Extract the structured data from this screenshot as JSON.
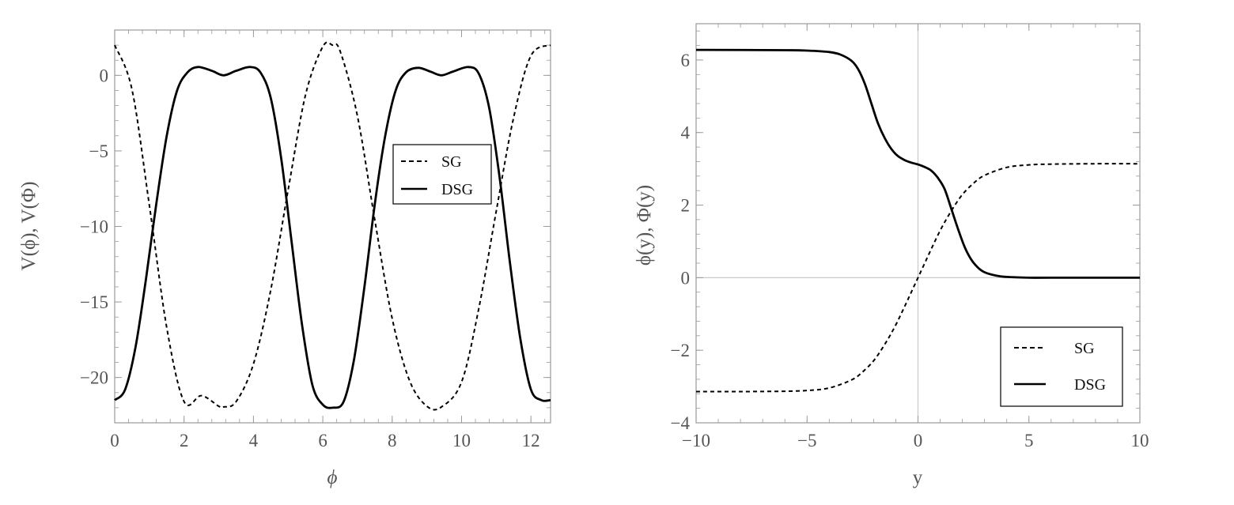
{
  "chart_data": [
    {
      "type": "line",
      "xlabel": "ϕ",
      "ylabel": "V(ϕ), V(Φ)",
      "xlim": [
        0,
        12.566
      ],
      "ylim": [
        -23,
        3
      ],
      "xticks": [
        0,
        2,
        4,
        6,
        8,
        10,
        12
      ],
      "xtick_labels": [
        "0",
        "2",
        "4",
        "6",
        "8",
        "10",
        "12"
      ],
      "yticks": [
        0,
        -5,
        -10,
        -15,
        -20
      ],
      "ytick_labels": [
        "0",
        "−5",
        "−10",
        "−15",
        "−20"
      ],
      "grid": false,
      "legend_position": "center-right",
      "series": [
        {
          "name": "SG",
          "style": "dashed",
          "color": "#000000",
          "x": [
            0,
            0.5,
            1.0,
            1.5,
            2.0,
            2.5,
            3.0,
            3.14,
            3.5,
            4.0,
            4.5,
            5.0,
            5.5,
            6.0,
            6.28,
            6.5,
            7.0,
            7.5,
            8.0,
            8.5,
            9.0,
            9.42,
            10.0,
            10.5,
            11.0,
            11.5,
            12.0,
            12.566
          ],
          "y": [
            2.0,
            -0.95,
            -8.6,
            -16.7,
            -21.6,
            -21.2,
            -21.9,
            -21.95,
            -21.6,
            -19.1,
            -14.2,
            -7.6,
            -1.3,
            1.9,
            2.0,
            1.6,
            -2.7,
            -9.6,
            -16.1,
            -20.2,
            -21.9,
            -21.95,
            -20.3,
            -15.4,
            -9.0,
            -2.8,
            1.3,
            2.0
          ]
        },
        {
          "name": "DSG",
          "style": "solid",
          "color": "#000000",
          "x": [
            0,
            0.3,
            0.6,
            0.9,
            1.2,
            1.5,
            1.8,
            2.1,
            2.4,
            2.8,
            3.14,
            3.5,
            3.9,
            4.2,
            4.5,
            4.8,
            5.1,
            5.4,
            5.7,
            6.0,
            6.28,
            6.6,
            6.9,
            7.2,
            7.5,
            7.8,
            8.1,
            8.4,
            8.75,
            9.1,
            9.42,
            9.75,
            10.2,
            10.5,
            10.8,
            11.1,
            11.4,
            11.7,
            12.0,
            12.3,
            12.566
          ],
          "y": [
            -21.5,
            -20.8,
            -18.0,
            -13.5,
            -8.5,
            -4.0,
            -1.0,
            0.2,
            0.55,
            0.3,
            0.0,
            0.3,
            0.55,
            0.2,
            -1.5,
            -5.5,
            -11.0,
            -16.5,
            -20.5,
            -21.8,
            -22.0,
            -21.6,
            -18.8,
            -14.0,
            -8.5,
            -4.0,
            -1.0,
            0.2,
            0.5,
            0.25,
            0.0,
            0.25,
            0.55,
            0.1,
            -2.2,
            -6.8,
            -12.5,
            -17.5,
            -20.8,
            -21.5,
            -21.5
          ]
        }
      ]
    },
    {
      "type": "line",
      "xlabel": "y",
      "ylabel": "ϕ(y), Φ(y)",
      "xlim": [
        -10,
        10
      ],
      "ylim": [
        -4,
        7
      ],
      "xticks": [
        -10,
        -5,
        0,
        5,
        10
      ],
      "xtick_labels": [
        "−10",
        "−5",
        "0",
        "5",
        "10"
      ],
      "yticks": [
        6,
        4,
        2,
        0,
        -2,
        -4
      ],
      "ytick_labels": [
        "6",
        "4",
        "2",
        "0",
        "−2",
        "−4"
      ],
      "grid": false,
      "axes_lines": true,
      "legend_position": "bottom-right",
      "series": [
        {
          "name": "SG",
          "style": "dashed",
          "color": "#000000",
          "x": [
            -10,
            -8,
            -6,
            -5,
            -4,
            -3,
            -2.5,
            -2,
            -1.5,
            -1,
            -0.5,
            0,
            0.5,
            1,
            1.5,
            2,
            2.5,
            3,
            4,
            5,
            6,
            8,
            10
          ],
          "y": [
            -3.14,
            -3.14,
            -3.13,
            -3.11,
            -3.04,
            -2.82,
            -2.6,
            -2.29,
            -1.84,
            -1.3,
            -0.66,
            0.0,
            0.66,
            1.3,
            1.84,
            2.29,
            2.6,
            2.82,
            3.04,
            3.11,
            3.13,
            3.14,
            3.14
          ]
        },
        {
          "name": "DSG",
          "style": "solid",
          "color": "#000000",
          "x": [
            -10,
            -6,
            -5,
            -4,
            -3.5,
            -3,
            -2.7,
            -2.4,
            -2.1,
            -1.8,
            -1.5,
            -1.2,
            -0.9,
            -0.6,
            -0.3,
            0,
            0.3,
            0.6,
            0.9,
            1.2,
            1.5,
            1.8,
            2.1,
            2.4,
            2.7,
            3,
            3.5,
            4,
            5,
            6,
            10
          ],
          "y": [
            6.28,
            6.27,
            6.26,
            6.22,
            6.15,
            5.98,
            5.75,
            5.35,
            4.8,
            4.25,
            3.85,
            3.55,
            3.35,
            3.24,
            3.17,
            3.12,
            3.05,
            2.95,
            2.75,
            2.44,
            1.9,
            1.35,
            0.85,
            0.5,
            0.28,
            0.15,
            0.06,
            0.02,
            0.0,
            0.0,
            0.0
          ]
        }
      ]
    }
  ]
}
